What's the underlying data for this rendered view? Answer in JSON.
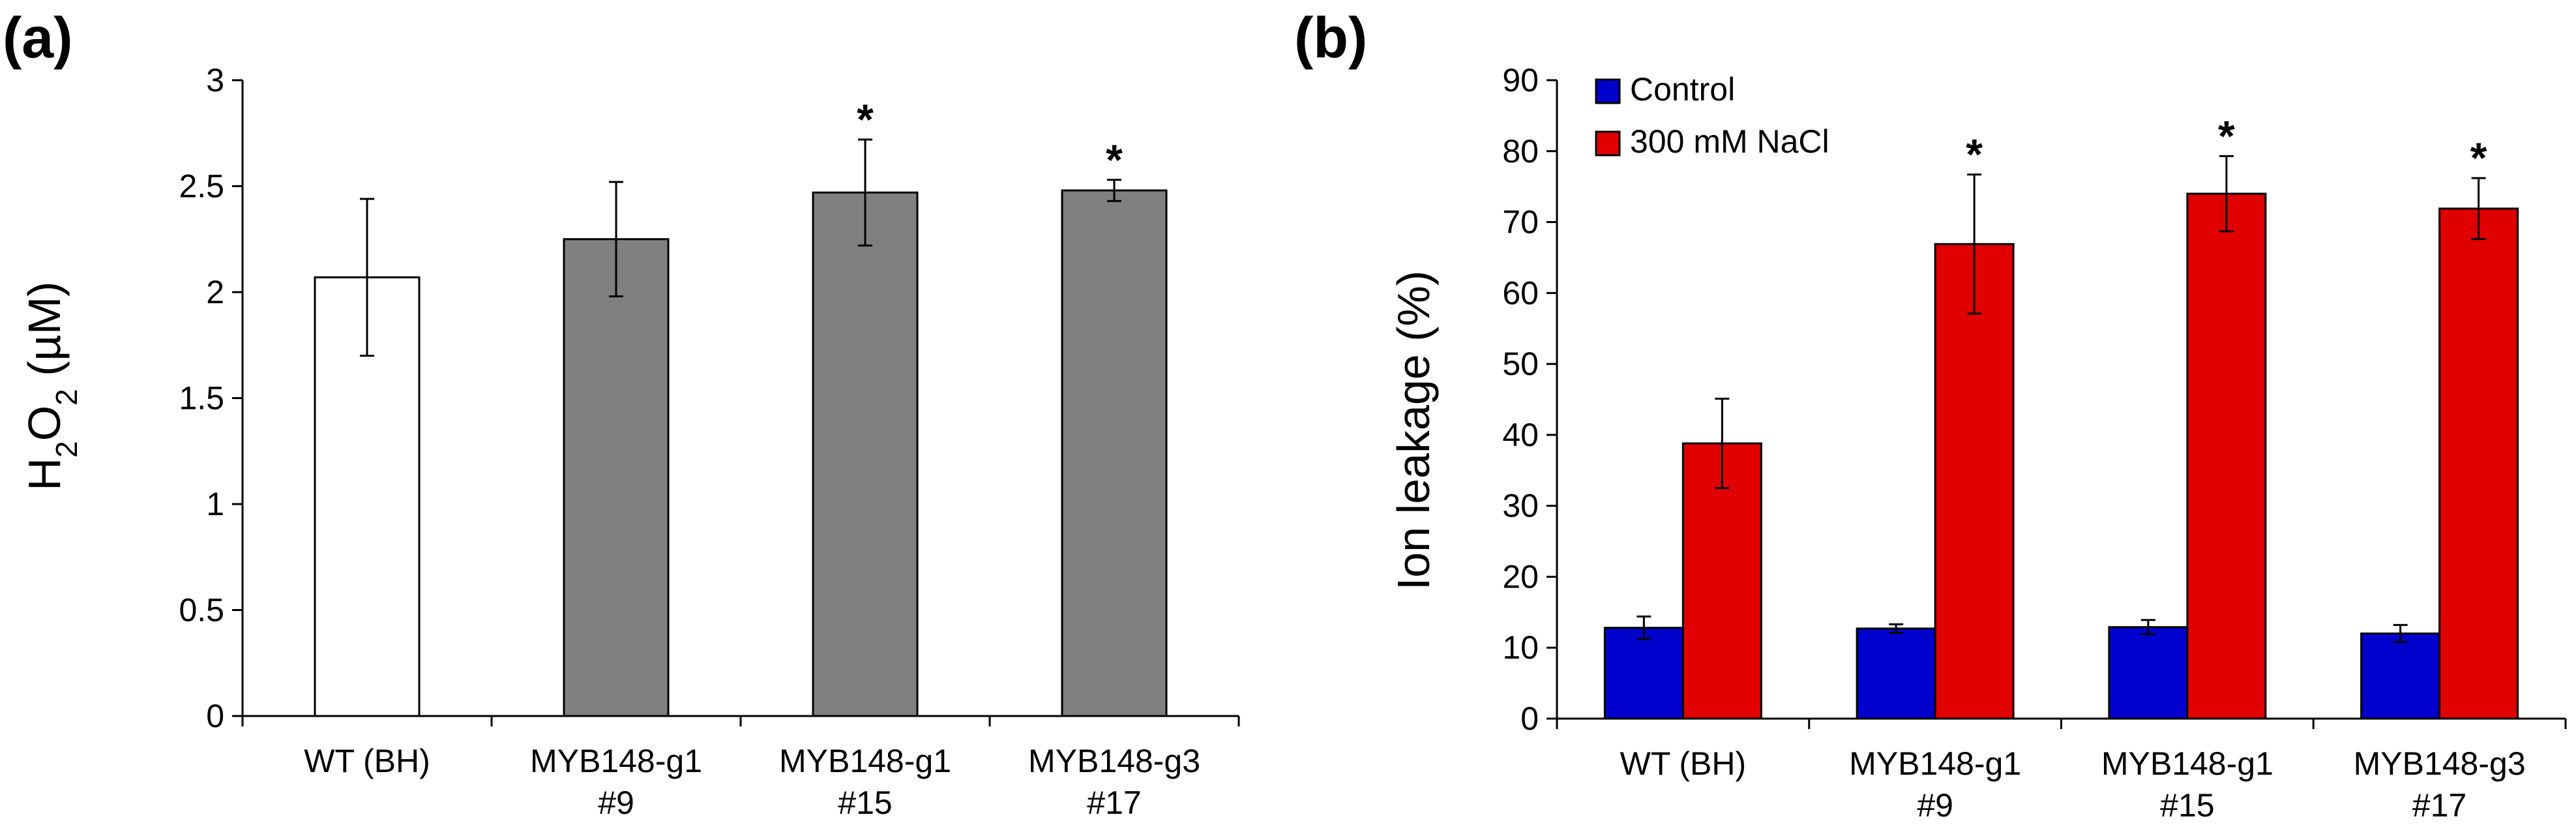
{
  "chart_data": [
    {
      "type": "bar",
      "panel_label": "(a)",
      "ylabel_main": "H",
      "ylabel_sub1": "2",
      "ylabel_mid": "O",
      "ylabel_sub2": "2",
      "ylabel_unit": " (µM)",
      "ylim": [
        0,
        3
      ],
      "yticks": [
        0,
        0.5,
        1,
        1.5,
        2,
        2.5,
        3
      ],
      "ytick_labels": [
        "0",
        "0.5",
        "1",
        "1.5",
        "2",
        "2.5",
        "3"
      ],
      "categories": [
        {
          "line1": "WT (BH)",
          "line2": ""
        },
        {
          "line1": "MYB148-g1",
          "line2": "#9"
        },
        {
          "line1": "MYB148-g1",
          "line2": "#15"
        },
        {
          "line1": "MYB148-g3",
          "line2": "#17"
        }
      ],
      "values": [
        2.07,
        2.25,
        2.47,
        2.48
      ],
      "errors": [
        0.37,
        0.27,
        0.25,
        0.05
      ],
      "bar_fills": [
        "#ffffff",
        "#808080",
        "#808080",
        "#808080"
      ],
      "significance": [
        "",
        "",
        "*",
        "*"
      ]
    },
    {
      "type": "bar",
      "panel_label": "(b)",
      "ylabel": "Ion leakage (%)",
      "ylim": [
        0,
        90
      ],
      "yticks": [
        0,
        10,
        20,
        30,
        40,
        50,
        60,
        70,
        80,
        90
      ],
      "ytick_labels": [
        "0",
        "10",
        "20",
        "30",
        "40",
        "50",
        "60",
        "70",
        "80",
        "90"
      ],
      "categories": [
        {
          "line1": "WT (BH)",
          "line2": ""
        },
        {
          "line1": "MYB148-g1",
          "line2": "#9"
        },
        {
          "line1": "MYB148-g1",
          "line2": "#15"
        },
        {
          "line1": "MYB148-g3",
          "line2": "#17"
        }
      ],
      "legend_position": "top-left",
      "series": [
        {
          "name": "Control",
          "color": "#0000cc",
          "values": [
            12.8,
            12.7,
            12.9,
            12.0
          ],
          "errors": [
            1.6,
            0.6,
            1.0,
            1.2
          ],
          "significance": [
            "",
            "",
            "",
            ""
          ]
        },
        {
          "name": "300 mM NaCl",
          "color": "#e00000",
          "values": [
            38.8,
            66.9,
            74.0,
            71.9
          ],
          "errors": [
            6.3,
            9.8,
            5.3,
            4.3
          ],
          "significance": [
            "",
            "*",
            "*",
            "*"
          ]
        }
      ]
    }
  ]
}
